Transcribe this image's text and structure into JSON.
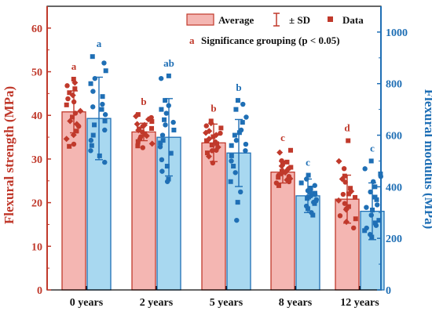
{
  "chart_data": {
    "type": "bar",
    "categories": [
      "0 years",
      "2 years",
      "5 years",
      "8 years",
      "12 years"
    ],
    "y_left": {
      "label": "Flexural strength (MPa)",
      "ticks": [
        "0",
        "10",
        "20",
        "30",
        "40",
        "50",
        "60"
      ],
      "ylim": [
        0,
        65
      ],
      "color": "#c0392b"
    },
    "y_right": {
      "label": "Flexural modulus (MPa)",
      "ticks": [
        "0",
        "200",
        "400",
        "600",
        "800",
        "1000"
      ],
      "ylim": [
        0,
        1100
      ],
      "color": "#1f6fb5"
    },
    "legend": {
      "average": "Average",
      "sd": "± SD",
      "data": "Data",
      "sig_letter": "a",
      "sig": "Significance grouping (p < 0.05)",
      "placement": "top-right"
    },
    "series": [
      {
        "axis": "left",
        "bar_color": "#f4b6b2",
        "edge_color": "#c0392b",
        "values": [
          40.8,
          36.2,
          33.7,
          27.0,
          20.8
        ],
        "sd": [
          4.8,
          2.0,
          4.3,
          2.5,
          5.5
        ],
        "letters": [
          "a",
          "b",
          "b",
          "c",
          "d"
        ],
        "points": [
          [
            48.3,
            47.5,
            46.8,
            45.2,
            44.6,
            43.1,
            42.4,
            41.0,
            40.5,
            39.6,
            38.7,
            37.5,
            36.4,
            34.6,
            33.4,
            32.9,
            38.0,
            43.8,
            46.1,
            35.5
          ],
          [
            40.2,
            39.8,
            39.5,
            38.6,
            38.0,
            37.5,
            37.0,
            36.6,
            36.2,
            35.8,
            35.3,
            34.6,
            34.0,
            33.5,
            32.6,
            36.9,
            37.8,
            35.1,
            33.0,
            39.1
          ],
          [
            38.7,
            38.2,
            37.6,
            37.1,
            36.4,
            35.9,
            35.1,
            34.6,
            33.9,
            33.2,
            32.7,
            32.0,
            31.4,
            30.6,
            29.1,
            34.2,
            36.0,
            31.9,
            33.5,
            35.5
          ],
          [
            32.0,
            31.5,
            29.6,
            29.0,
            28.4,
            27.8,
            27.2,
            26.7,
            26.3,
            25.8,
            25.2,
            24.5,
            23.9,
            27.5,
            26.0,
            28.1,
            25.5,
            24.8,
            29.3,
            26.9
          ],
          [
            34.2,
            29.5,
            27.8,
            26.1,
            25.4,
            24.7,
            23.3,
            22.6,
            21.9,
            21.2,
            20.5,
            19.8,
            19.1,
            18.4,
            17.0,
            16.3,
            15.6,
            14.2,
            22.0,
            18.7
          ]
        ]
      },
      {
        "axis": "right",
        "bar_color": "#a8d8f0",
        "edge_color": "#1f6fb5",
        "values": [
          665,
          592,
          531,
          365,
          305
        ],
        "sd": [
          160,
          150,
          130,
          65,
          110
        ],
        "letters": [
          "a",
          "ab",
          "b",
          "c",
          "c"
        ],
        "points": [
          [
            905,
            880,
            850,
            820,
            800,
            770,
            750,
            720,
            700,
            680,
            640,
            620,
            600,
            580,
            560,
            540,
            520,
            495,
            655,
            710
          ],
          [
            830,
            820,
            735,
            715,
            700,
            685,
            660,
            640,
            620,
            600,
            580,
            555,
            530,
            505,
            480,
            460,
            430,
            420,
            570,
            650
          ],
          [
            735,
            720,
            700,
            670,
            650,
            620,
            600,
            580,
            560,
            540,
            520,
            500,
            480,
            455,
            420,
            380,
            340,
            270,
            610,
            565
          ],
          [
            445,
            430,
            415,
            405,
            395,
            385,
            375,
            365,
            355,
            345,
            335,
            325,
            315,
            300,
            290,
            370,
            360,
            350,
            380,
            340
          ],
          [
            500,
            470,
            450,
            420,
            400,
            380,
            350,
            330,
            310,
            290,
            270,
            250,
            230,
            215,
            205,
            440,
            360,
            320,
            260,
            240
          ]
        ]
      }
    ]
  }
}
